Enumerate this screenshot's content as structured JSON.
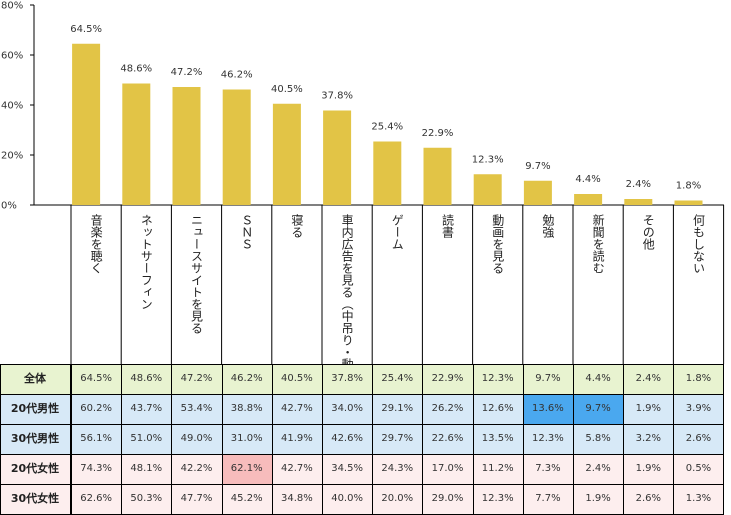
{
  "chart_data": {
    "type": "bar",
    "title": "",
    "xlabel": "",
    "ylabel": "",
    "ylim": [
      0,
      80
    ],
    "yticks": [
      "0%",
      "20%",
      "40%",
      "60%",
      "80%"
    ],
    "categories": [
      "音楽を聴く",
      "ネットサーフィン",
      "ニュースサイトを見る",
      "ＳＮＳ",
      "寝る",
      "車内広告を見る（中吊り・動画など）",
      "ゲーム",
      "読書",
      "動画を見る",
      "勉強",
      "新聞を読む",
      "その他",
      "何もしない"
    ],
    "values": [
      64.5,
      48.6,
      47.2,
      46.2,
      40.5,
      37.8,
      25.4,
      22.9,
      12.3,
      9.7,
      4.4,
      2.4,
      1.8
    ],
    "value_labels": [
      "64.5%",
      "48.6%",
      "47.2%",
      "46.2%",
      "40.5%",
      "37.8%",
      "25.4%",
      "22.9%",
      "12.3%",
      "9.7%",
      "4.4%",
      "2.4%",
      "1.8%"
    ],
    "bar_color": "#e2c446",
    "grid": false
  },
  "table": {
    "rows": [
      {
        "label": "全体",
        "bg": "#e8f3d0",
        "values": [
          "64.5%",
          "48.6%",
          "47.2%",
          "46.2%",
          "40.5%",
          "37.8%",
          "25.4%",
          "22.9%",
          "12.3%",
          "9.7%",
          "4.4%",
          "2.4%",
          "1.8%"
        ]
      },
      {
        "label": "20代男性",
        "bg": "#d7e9f7",
        "values": [
          "60.2%",
          "43.7%",
          "53.4%",
          "38.8%",
          "42.7%",
          "34.0%",
          "29.1%",
          "26.2%",
          "12.6%",
          "13.6%",
          "9.7%",
          "1.9%",
          "3.9%"
        ],
        "highlight": [
          9,
          10
        ]
      },
      {
        "label": "30代男性",
        "bg": "#d7e9f7",
        "values": [
          "56.1%",
          "51.0%",
          "49.0%",
          "31.0%",
          "41.9%",
          "42.6%",
          "29.7%",
          "22.6%",
          "13.5%",
          "12.3%",
          "5.8%",
          "3.2%",
          "2.6%"
        ]
      },
      {
        "label": "20代女性",
        "bg": "#fdeeee",
        "values": [
          "74.3%",
          "48.1%",
          "42.2%",
          "62.1%",
          "42.7%",
          "34.5%",
          "24.3%",
          "17.0%",
          "11.2%",
          "7.3%",
          "2.4%",
          "1.9%",
          "0.5%"
        ],
        "highlight": [
          3
        ]
      },
      {
        "label": "30代女性",
        "bg": "#fdeeee",
        "values": [
          "62.6%",
          "50.3%",
          "47.7%",
          "45.2%",
          "34.8%",
          "40.0%",
          "20.0%",
          "29.0%",
          "12.3%",
          "7.7%",
          "1.9%",
          "2.6%",
          "1.3%"
        ]
      }
    ],
    "highlight_colors": {
      "male": "#4aa8ef",
      "female": "#f7bcbc"
    }
  }
}
